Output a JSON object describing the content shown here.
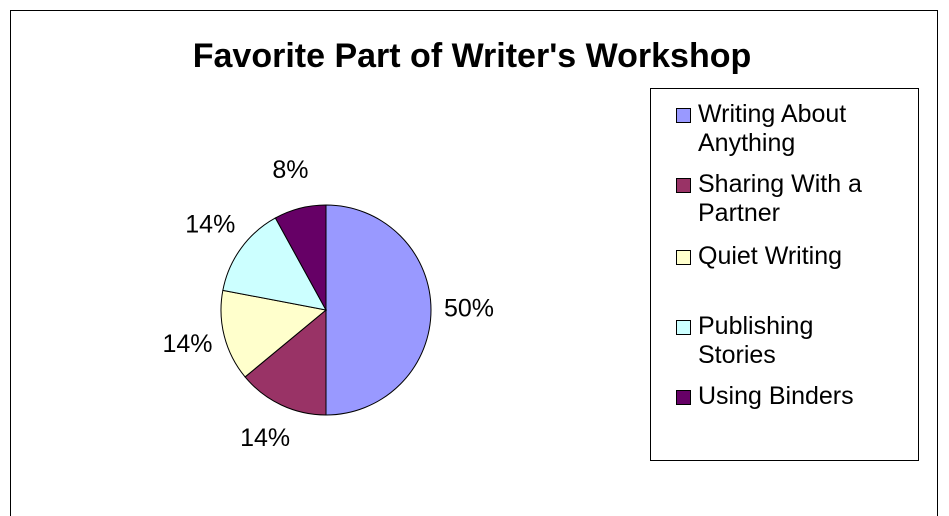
{
  "chart_data": {
    "type": "pie",
    "title": "Favorite Part of Writer's Workshop",
    "categories": [
      "Writing About Anything",
      "Sharing With a Partner",
      "Quiet Writing",
      "Publishing Stories",
      "Using Binders"
    ],
    "values": [
      50,
      14,
      14,
      14,
      8
    ],
    "value_labels": [
      "50%",
      "14%",
      "14%",
      "14%",
      "8%"
    ],
    "colors": [
      "#9999ff",
      "#993366",
      "#ffffcc",
      "#ccffff",
      "#660066"
    ],
    "legend": "right"
  }
}
